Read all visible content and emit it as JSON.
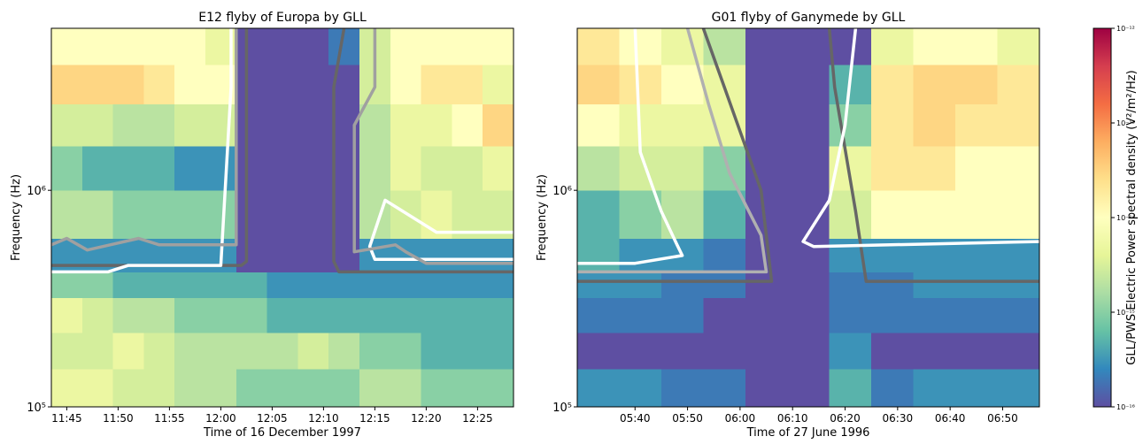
{
  "chart_data": [
    {
      "type": "heatmap",
      "title": "E12 flyby of Europa by GLL",
      "x_label": "Time of 16 December 1997",
      "y_label": "Frequency (Hz)",
      "xlim": [
        703.5,
        748.5
      ],
      "ylim": [
        100000,
        5600000
      ],
      "y_log": true,
      "xticks": [
        {
          "value": 705,
          "label": "11:45"
        },
        {
          "value": 710,
          "label": "11:50"
        },
        {
          "value": 715,
          "label": "11:55"
        },
        {
          "value": 720,
          "label": "12:00"
        },
        {
          "value": 725,
          "label": "12:05"
        },
        {
          "value": 730,
          "label": "12:10"
        },
        {
          "value": 735,
          "label": "12:15"
        },
        {
          "value": 740,
          "label": "12:20"
        },
        {
          "value": 745,
          "label": "12:25"
        }
      ],
      "yticks": [
        {
          "value": 100000,
          "label": "10⁵"
        },
        {
          "value": 1000000,
          "label": "10⁶"
        }
      ],
      "x_edges": [
        703.5,
        706.5,
        709.5,
        712.5,
        715.5,
        718.5,
        721.5,
        724.5,
        727.5,
        730.5,
        733.5,
        736.5,
        739.5,
        742.5,
        745.5,
        748.5
      ],
      "y_edges": [
        100000,
        150000,
        220000,
        320000,
        420000,
        600000,
        1000000,
        1600000,
        2500000,
        3800000,
        5600000
      ],
      "z": [
        [
          5e-15,
          5e-15,
          3e-15,
          3e-15,
          2e-15,
          2e-15,
          1e-15,
          1e-15,
          1e-15,
          1e-15,
          2e-15,
          2e-15,
          1e-15,
          1e-15,
          1e-15
        ],
        [
          3e-15,
          3e-15,
          5e-15,
          3e-15,
          2e-15,
          2e-15,
          2e-15,
          2e-15,
          3e-15,
          2e-15,
          1e-15,
          1e-15,
          5e-16,
          5e-16,
          5e-16
        ],
        [
          5e-15,
          3e-15,
          2e-15,
          2e-15,
          1e-15,
          1e-15,
          1e-15,
          5e-16,
          5e-16,
          5e-16,
          5e-16,
          5e-16,
          5e-16,
          5e-16,
          5e-16
        ],
        [
          1e-15,
          1e-15,
          5e-16,
          5e-16,
          5e-16,
          5e-16,
          5e-16,
          3e-16,
          3e-16,
          3e-16,
          3e-16,
          3e-16,
          3e-16,
          3e-16,
          3e-16
        ],
        [
          3e-16,
          3e-16,
          3e-16,
          3e-16,
          3e-16,
          3e-16,
          1e-16,
          1e-16,
          1e-16,
          1e-16,
          3e-16,
          3e-16,
          3e-16,
          3e-16,
          3e-16
        ],
        [
          2e-15,
          2e-15,
          1e-15,
          1e-15,
          1e-15,
          1e-15,
          1e-16,
          1e-16,
          1e-16,
          1e-16,
          2e-15,
          3e-15,
          5e-15,
          3e-15,
          3e-15
        ],
        [
          1e-15,
          5e-16,
          5e-16,
          5e-16,
          3e-16,
          3e-16,
          1e-16,
          1e-16,
          1e-16,
          1e-16,
          2e-15,
          5e-15,
          3e-15,
          3e-15,
          5e-15
        ],
        [
          3e-15,
          3e-15,
          2e-15,
          2e-15,
          3e-15,
          3e-15,
          1e-16,
          1e-16,
          1e-16,
          1e-16,
          2e-15,
          5e-15,
          5e-15,
          1e-14,
          3e-14
        ],
        [
          3e-14,
          3e-14,
          3e-14,
          2e-14,
          1e-14,
          1e-14,
          1e-16,
          1e-16,
          1e-16,
          1e-16,
          3e-15,
          1e-14,
          2e-14,
          2e-14,
          5e-15
        ],
        [
          1e-14,
          1e-14,
          1e-14,
          1e-14,
          1e-14,
          5e-15,
          1e-16,
          1e-16,
          1e-16,
          2e-16,
          3e-15,
          1e-14,
          1e-14,
          1e-14,
          1e-14
        ]
      ],
      "contours": [
        {
          "color": "#666666",
          "x": [
            703.5,
            722,
            722.5,
            722.5
          ],
          "y": [
            450000,
            450000,
            470000,
            5600000
          ]
        },
        {
          "color": "#666666",
          "x": [
            748.5,
            731.5,
            731,
            731,
            732
          ],
          "y": [
            420000,
            420000,
            470000,
            3000000,
            5600000
          ]
        },
        {
          "color": "#ffffff",
          "x": [
            703.5,
            709,
            711,
            720,
            721,
            721
          ],
          "y": [
            420000,
            420000,
            450000,
            450000,
            3000000,
            5600000
          ]
        },
        {
          "color": "#ffffff",
          "x": [
            748.5,
            735,
            734.5,
            736,
            741,
            748.5
          ],
          "y": [
            480000,
            480000,
            550000,
            900000,
            640000,
            640000
          ]
        },
        {
          "color": "#a0a0a0",
          "x": [
            703.5,
            705,
            707,
            712,
            714,
            717,
            721.5,
            721.5
          ],
          "y": [
            560000,
            600000,
            530000,
            600000,
            560000,
            560000,
            560000,
            5600000
          ]
        },
        {
          "color": "#a0a0a0",
          "x": [
            748.5,
            740,
            738,
            737,
            733,
            733,
            735,
            735
          ],
          "y": [
            460000,
            460000,
            520000,
            560000,
            520000,
            2000000,
            3000000,
            5600000
          ]
        }
      ]
    },
    {
      "type": "heatmap",
      "title": "G01 flyby of Ganymede by GLL",
      "x_label": "Time of 27 June 1996",
      "y_label": "Frequency (Hz)",
      "xlim": [
        329,
        417
      ],
      "ylim": [
        100000,
        5600000
      ],
      "y_log": true,
      "xticks": [
        {
          "value": 340,
          "label": "05:40"
        },
        {
          "value": 350,
          "label": "05:50"
        },
        {
          "value": 360,
          "label": "06:00"
        },
        {
          "value": 370,
          "label": "06:10"
        },
        {
          "value": 380,
          "label": "06:20"
        },
        {
          "value": 390,
          "label": "06:30"
        },
        {
          "value": 400,
          "label": "06:40"
        },
        {
          "value": 410,
          "label": "06:50"
        }
      ],
      "yticks": [
        {
          "value": 100000,
          "label": "10⁵"
        },
        {
          "value": 1000000,
          "label": "10⁶"
        }
      ],
      "x_edges": [
        329,
        337,
        345,
        353,
        361,
        369,
        377,
        385,
        393,
        401,
        409,
        417
      ],
      "y_edges": [
        100000,
        150000,
        220000,
        320000,
        420000,
        600000,
        1000000,
        1600000,
        2500000,
        3800000,
        5600000
      ],
      "z": [
        [
          3e-16,
          3e-16,
          2e-16,
          2e-16,
          1e-16,
          1e-16,
          5e-16,
          2e-16,
          3e-16,
          3e-16,
          3e-16
        ],
        [
          1e-16,
          1e-16,
          1e-16,
          1e-16,
          1e-16,
          1e-16,
          3e-16,
          1e-16,
          1e-16,
          1e-16,
          1e-16
        ],
        [
          2e-16,
          2e-16,
          2e-16,
          1e-16,
          1e-16,
          1e-16,
          2e-16,
          2e-16,
          2e-16,
          2e-16,
          2e-16
        ],
        [
          3e-16,
          3e-16,
          2e-16,
          2e-16,
          1e-16,
          1e-16,
          2e-16,
          2e-16,
          3e-16,
          3e-16,
          3e-16
        ],
        [
          5e-16,
          3e-16,
          3e-16,
          2e-16,
          1e-16,
          1e-16,
          3e-16,
          3e-16,
          3e-16,
          3e-16,
          3e-16
        ],
        [
          5e-16,
          1e-15,
          2e-15,
          5e-16,
          1e-16,
          1e-16,
          3e-15,
          1e-14,
          1e-14,
          1e-14,
          1e-14
        ],
        [
          2e-15,
          3e-15,
          3e-15,
          1e-15,
          1e-16,
          1e-16,
          5e-15,
          2e-14,
          2e-14,
          1e-14,
          1e-14
        ],
        [
          1e-14,
          5e-15,
          5e-15,
          5e-15,
          1e-16,
          1e-16,
          1e-15,
          2e-14,
          3e-14,
          2e-14,
          2e-14
        ],
        [
          3e-14,
          2e-14,
          1e-14,
          5e-15,
          1e-16,
          1e-16,
          5e-16,
          2e-14,
          3e-14,
          3e-14,
          2e-14
        ],
        [
          2e-14,
          1e-14,
          5e-15,
          2e-15,
          1e-16,
          1e-16,
          1e-16,
          5e-15,
          1e-14,
          1e-14,
          5e-15
        ]
      ],
      "contours": [
        {
          "color": "#666666",
          "x": [
            353,
            357,
            364,
            366,
            329
          ],
          "y": [
            5600000,
            3000000,
            1000000,
            380000,
            380000
          ]
        },
        {
          "color": "#666666",
          "x": [
            377,
            378,
            382,
            384,
            417
          ],
          "y": [
            5600000,
            3000000,
            800000,
            380000,
            380000
          ]
        },
        {
          "color": "#ffffff",
          "x": [
            340,
            341,
            345,
            348,
            349,
            340,
            329
          ],
          "y": [
            5600000,
            1500000,
            800000,
            560000,
            500000,
            460000,
            460000
          ]
        },
        {
          "color": "#ffffff",
          "x": [
            382,
            380,
            377,
            372,
            374,
            417
          ],
          "y": [
            5600000,
            2000000,
            900000,
            580000,
            550000,
            580000
          ]
        },
        {
          "color": "#b0b0b0",
          "x": [
            350,
            354,
            358,
            364,
            365,
            329
          ],
          "y": [
            5600000,
            2500000,
            1200000,
            620000,
            420000,
            420000
          ]
        }
      ]
    }
  ],
  "colorbar": {
    "label": "GLL/PWS Electric Power spectral density (V²/m²/Hz)",
    "colormap": "Spectral_r",
    "log": true,
    "clim": [
      1e-16,
      1e-12
    ],
    "ticks": [
      {
        "value": 1e-16,
        "label": "10⁻¹⁶"
      },
      {
        "value": 1e-15,
        "label": "10⁻¹⁵"
      },
      {
        "value": 1e-14,
        "label": "10⁻¹⁴"
      },
      {
        "value": 1e-13,
        "label": "10⁻¹³"
      },
      {
        "value": 1e-12,
        "label": "10⁻¹²"
      }
    ]
  }
}
